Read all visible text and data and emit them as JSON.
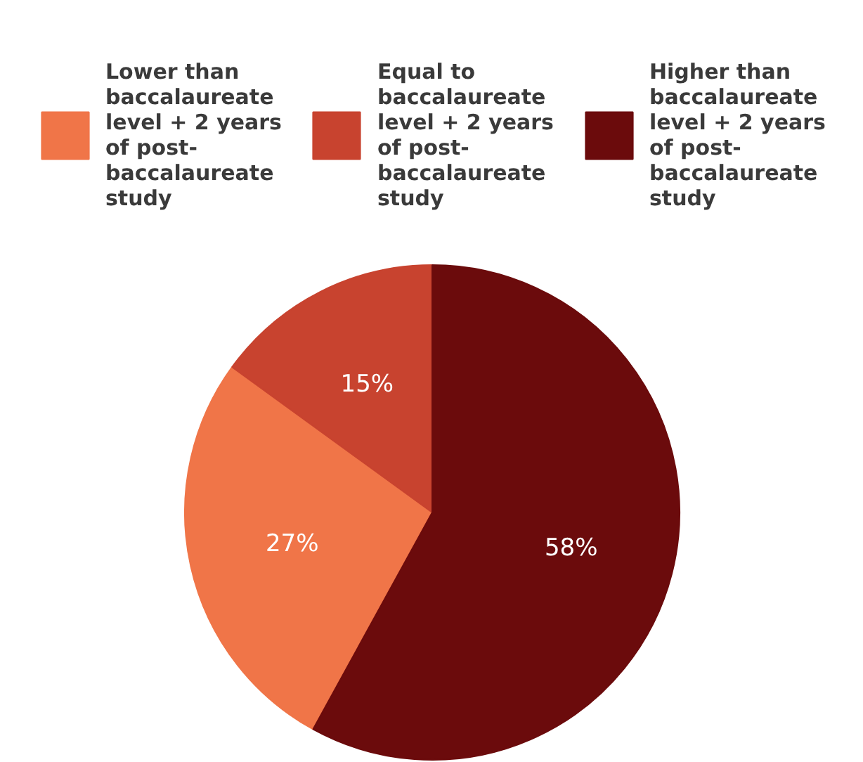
{
  "chart_data": {
    "type": "pie",
    "categories": [
      "Lower than baccalaureate level + 2 years of post-baccalaureate study",
      "Equal to baccalaureate level + 2 years of post-baccalaureate study",
      "Higher than baccalaureate level + 2 years of post-baccalaureate study"
    ],
    "values": [
      27,
      15,
      58
    ],
    "colors": [
      "#f07548",
      "#c8432f",
      "#6b0b0c"
    ],
    "value_labels": [
      "27%",
      "15%",
      "58%"
    ],
    "legend": "top"
  }
}
